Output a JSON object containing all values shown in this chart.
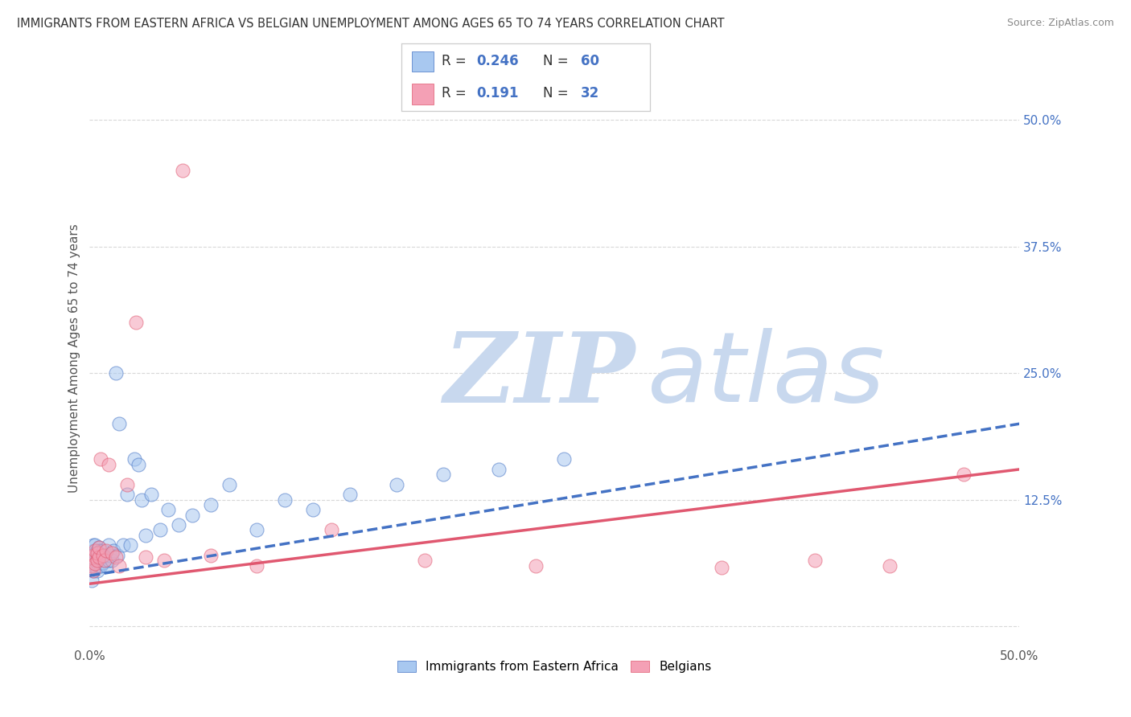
{
  "title": "IMMIGRANTS FROM EASTERN AFRICA VS BELGIAN UNEMPLOYMENT AMONG AGES 65 TO 74 YEARS CORRELATION CHART",
  "source": "Source: ZipAtlas.com",
  "ylabel": "Unemployment Among Ages 65 to 74 years",
  "xlim": [
    0.0,
    0.5
  ],
  "ylim": [
    -0.02,
    0.55
  ],
  "right_yticks": [
    0.0,
    0.125,
    0.25,
    0.375,
    0.5
  ],
  "right_yticklabels": [
    "",
    "12.5%",
    "25.0%",
    "37.5%",
    "50.0%"
  ],
  "legend_labels": [
    "Immigrants from Eastern Africa",
    "Belgians"
  ],
  "r_blue": 0.246,
  "n_blue": 60,
  "r_pink": 0.191,
  "n_pink": 32,
  "color_blue": "#a8c8f0",
  "color_pink": "#f4a0b5",
  "color_blue_dark": "#4472C4",
  "color_pink_dark": "#e05870",
  "watermark_zip": "ZIP",
  "watermark_atlas": "atlas",
  "watermark_color_zip": "#c8d8ee",
  "watermark_color_atlas": "#c8d8ee",
  "background_color": "#ffffff",
  "grid_color": "#d8d8d8",
  "blue_scatter_x": [
    0.001,
    0.001,
    0.002,
    0.002,
    0.002,
    0.002,
    0.002,
    0.003,
    0.003,
    0.003,
    0.003,
    0.003,
    0.004,
    0.004,
    0.004,
    0.004,
    0.005,
    0.005,
    0.005,
    0.005,
    0.006,
    0.006,
    0.006,
    0.007,
    0.007,
    0.007,
    0.008,
    0.008,
    0.009,
    0.009,
    0.01,
    0.01,
    0.011,
    0.012,
    0.013,
    0.014,
    0.015,
    0.016,
    0.018,
    0.02,
    0.022,
    0.024,
    0.026,
    0.028,
    0.03,
    0.033,
    0.038,
    0.042,
    0.048,
    0.055,
    0.065,
    0.075,
    0.09,
    0.105,
    0.12,
    0.14,
    0.165,
    0.19,
    0.22,
    0.255
  ],
  "blue_scatter_y": [
    0.045,
    0.06,
    0.055,
    0.065,
    0.07,
    0.075,
    0.08,
    0.06,
    0.065,
    0.07,
    0.072,
    0.08,
    0.055,
    0.065,
    0.068,
    0.075,
    0.06,
    0.065,
    0.07,
    0.078,
    0.06,
    0.068,
    0.075,
    0.063,
    0.068,
    0.075,
    0.065,
    0.07,
    0.06,
    0.07,
    0.065,
    0.08,
    0.07,
    0.065,
    0.075,
    0.25,
    0.07,
    0.2,
    0.08,
    0.13,
    0.08,
    0.165,
    0.16,
    0.125,
    0.09,
    0.13,
    0.095,
    0.115,
    0.1,
    0.11,
    0.12,
    0.14,
    0.095,
    0.125,
    0.115,
    0.13,
    0.14,
    0.15,
    0.155,
    0.165
  ],
  "pink_scatter_x": [
    0.001,
    0.001,
    0.002,
    0.002,
    0.003,
    0.003,
    0.004,
    0.004,
    0.005,
    0.005,
    0.006,
    0.007,
    0.008,
    0.009,
    0.01,
    0.012,
    0.014,
    0.016,
    0.02,
    0.025,
    0.03,
    0.04,
    0.05,
    0.065,
    0.09,
    0.13,
    0.18,
    0.24,
    0.34,
    0.39,
    0.43,
    0.47
  ],
  "pink_scatter_y": [
    0.06,
    0.068,
    0.055,
    0.07,
    0.062,
    0.075,
    0.065,
    0.072,
    0.068,
    0.078,
    0.165,
    0.07,
    0.065,
    0.075,
    0.16,
    0.072,
    0.068,
    0.06,
    0.14,
    0.3,
    0.068,
    0.065,
    0.45,
    0.07,
    0.06,
    0.095,
    0.065,
    0.06,
    0.058,
    0.065,
    0.06,
    0.15
  ],
  "blue_trend_start": 0.05,
  "blue_trend_end": 0.2,
  "pink_trend_start": 0.042,
  "pink_trend_end": 0.155
}
